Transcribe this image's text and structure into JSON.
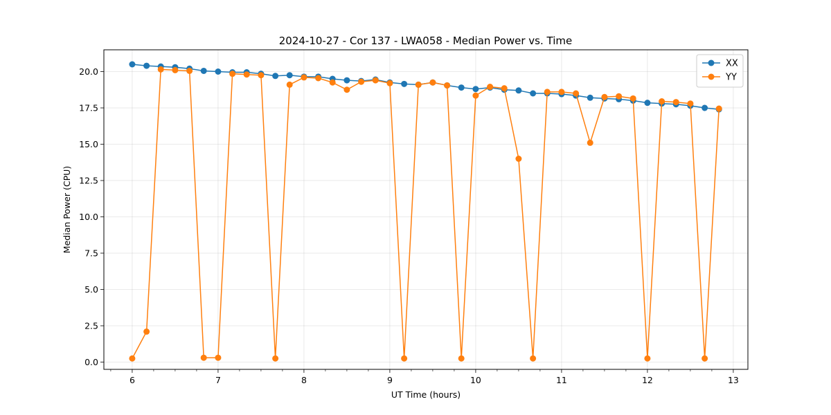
{
  "chart_data": {
    "type": "line",
    "title": "2024-10-27 - Cor 137 - LWA058 - Median Power vs. Time",
    "xlabel": "UT Time (hours)",
    "ylabel": "Median Power (CPU)",
    "xlim": [
      5.67,
      13.17
    ],
    "ylim": [
      -0.5,
      21.5
    ],
    "xticks": [
      6,
      7,
      8,
      9,
      10,
      11,
      12,
      13
    ],
    "xtick_labels": [
      "6",
      "7",
      "8",
      "9",
      "10",
      "11",
      "12",
      "13"
    ],
    "x_minor_step": 0.25,
    "yticks": [
      0,
      2.5,
      5,
      7.5,
      10,
      12.5,
      15,
      17.5,
      20
    ],
    "ytick_labels": [
      "0.0",
      "2.5",
      "5.0",
      "7.5",
      "10.0",
      "12.5",
      "15.0",
      "17.5",
      "20.0"
    ],
    "grid": true,
    "legend_position": "top-right",
    "x": [
      6.0,
      6.167,
      6.333,
      6.5,
      6.667,
      6.833,
      7.0,
      7.167,
      7.333,
      7.5,
      7.667,
      7.833,
      8.0,
      8.167,
      8.333,
      8.5,
      8.667,
      8.833,
      9.0,
      9.167,
      9.333,
      9.5,
      9.667,
      9.833,
      10.0,
      10.167,
      10.333,
      10.5,
      10.667,
      10.833,
      11.0,
      11.167,
      11.333,
      11.5,
      11.667,
      11.833,
      12.0,
      12.167,
      12.333,
      12.5,
      12.667,
      12.833
    ],
    "series": [
      {
        "name": "XX",
        "color": "#1f77b4",
        "values": [
          20.5,
          20.4,
          20.35,
          20.3,
          20.2,
          20.05,
          20.0,
          19.95,
          19.95,
          19.85,
          19.7,
          19.75,
          19.65,
          19.65,
          19.5,
          19.4,
          19.35,
          19.45,
          19.25,
          19.15,
          19.1,
          19.25,
          19.05,
          18.9,
          18.8,
          18.9,
          18.75,
          18.7,
          18.5,
          18.5,
          18.45,
          18.35,
          18.2,
          18.15,
          18.1,
          18.0,
          17.85,
          17.8,
          17.75,
          17.65,
          17.5,
          17.4
        ]
      },
      {
        "name": "YY",
        "color": "#ff7f0e",
        "values": [
          0.25,
          2.1,
          20.15,
          20.1,
          20.05,
          0.3,
          0.3,
          19.85,
          19.8,
          19.75,
          0.25,
          19.1,
          19.6,
          19.55,
          19.25,
          18.75,
          19.3,
          19.4,
          19.2,
          0.25,
          19.1,
          19.25,
          19.05,
          0.25,
          18.35,
          18.95,
          18.85,
          14.0,
          0.25,
          18.6,
          18.6,
          18.5,
          15.1,
          18.25,
          18.3,
          18.15,
          0.25,
          17.95,
          17.9,
          17.8,
          0.25,
          17.45
        ]
      }
    ]
  }
}
